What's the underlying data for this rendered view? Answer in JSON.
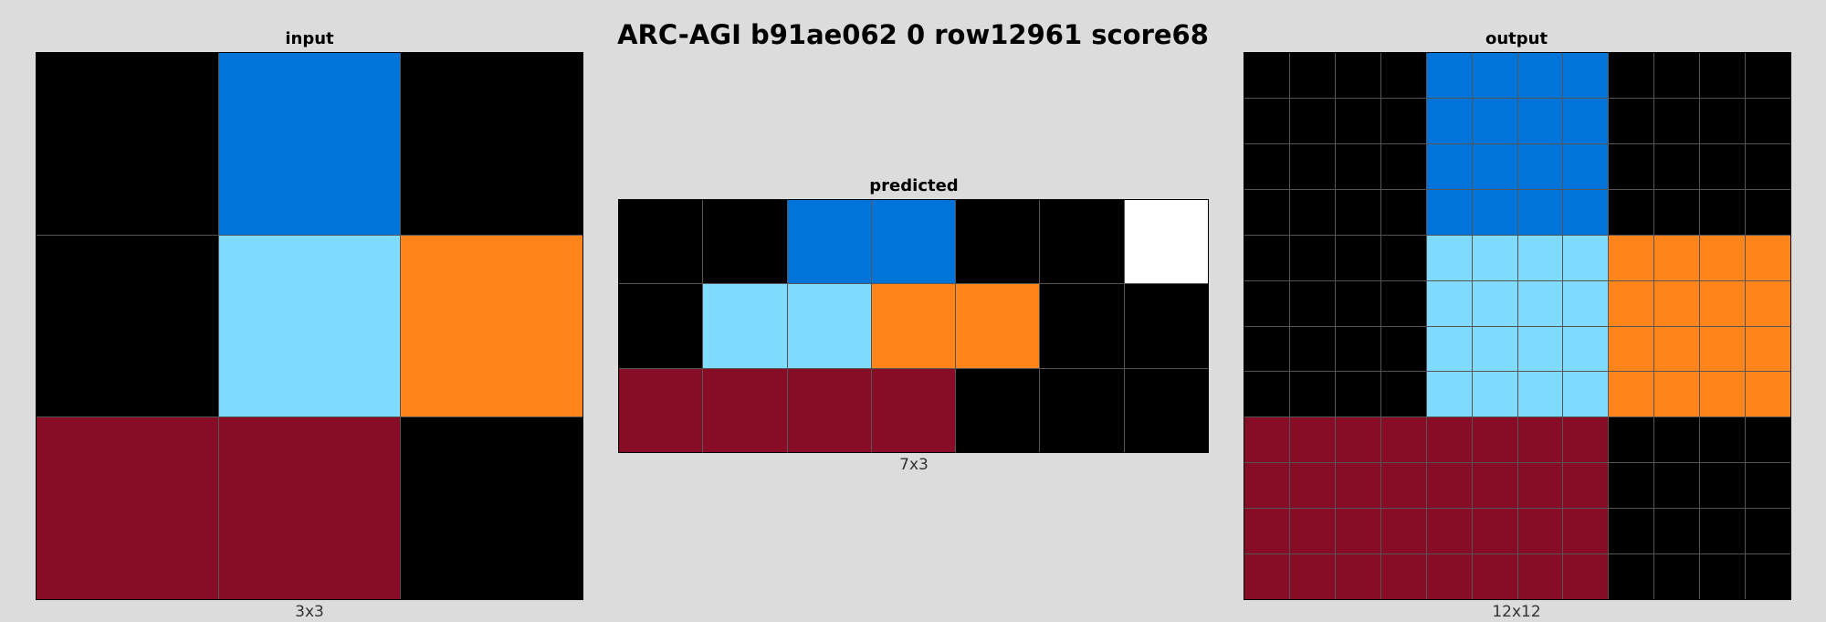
{
  "title": "ARC-AGI b91ae062 0 row12961 score68",
  "palette": {
    "0": "#000000",
    "1": "#0074D9",
    "7": "#FF851B",
    "8": "#7FDBFF",
    "9": "#870C25",
    "w": "#FFFFFF"
  },
  "panels": [
    {
      "label": "input",
      "dims": "3x3",
      "rows": 3,
      "cols": 3,
      "cells": [
        [
          "0",
          "1",
          "0"
        ],
        [
          "0",
          "8",
          "7"
        ],
        [
          "9",
          "9",
          "0"
        ]
      ]
    },
    {
      "label": "predicted",
      "dims": "7x3",
      "rows": 3,
      "cols": 7,
      "cells": [
        [
          "0",
          "0",
          "1",
          "1",
          "0",
          "0",
          "w"
        ],
        [
          "0",
          "8",
          "8",
          "7",
          "7",
          "0",
          "0"
        ],
        [
          "9",
          "9",
          "9",
          "9",
          "0",
          "0",
          "0"
        ]
      ]
    },
    {
      "label": "output",
      "dims": "12x12",
      "rows": 12,
      "cols": 12,
      "cells": [
        [
          "0",
          "0",
          "0",
          "0",
          "1",
          "1",
          "1",
          "1",
          "0",
          "0",
          "0",
          "0"
        ],
        [
          "0",
          "0",
          "0",
          "0",
          "1",
          "1",
          "1",
          "1",
          "0",
          "0",
          "0",
          "0"
        ],
        [
          "0",
          "0",
          "0",
          "0",
          "1",
          "1",
          "1",
          "1",
          "0",
          "0",
          "0",
          "0"
        ],
        [
          "0",
          "0",
          "0",
          "0",
          "1",
          "1",
          "1",
          "1",
          "0",
          "0",
          "0",
          "0"
        ],
        [
          "0",
          "0",
          "0",
          "0",
          "8",
          "8",
          "8",
          "8",
          "7",
          "7",
          "7",
          "7"
        ],
        [
          "0",
          "0",
          "0",
          "0",
          "8",
          "8",
          "8",
          "8",
          "7",
          "7",
          "7",
          "7"
        ],
        [
          "0",
          "0",
          "0",
          "0",
          "8",
          "8",
          "8",
          "8",
          "7",
          "7",
          "7",
          "7"
        ],
        [
          "0",
          "0",
          "0",
          "0",
          "8",
          "8",
          "8",
          "8",
          "7",
          "7",
          "7",
          "7"
        ],
        [
          "9",
          "9",
          "9",
          "9",
          "9",
          "9",
          "9",
          "9",
          "0",
          "0",
          "0",
          "0"
        ],
        [
          "9",
          "9",
          "9",
          "9",
          "9",
          "9",
          "9",
          "9",
          "0",
          "0",
          "0",
          "0"
        ],
        [
          "9",
          "9",
          "9",
          "9",
          "9",
          "9",
          "9",
          "9",
          "0",
          "0",
          "0",
          "0"
        ],
        [
          "9",
          "9",
          "9",
          "9",
          "9",
          "9",
          "9",
          "9",
          "0",
          "0",
          "0",
          "0"
        ]
      ]
    }
  ]
}
